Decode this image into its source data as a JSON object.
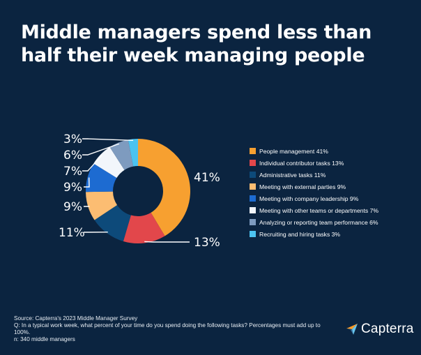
{
  "title": "Middle managers spend less than half their week managing people",
  "chart_data": {
    "type": "pie",
    "title": "Middle managers spend less than half their week managing people",
    "categories": [
      "People management 41%",
      "Individual contributor tasks 13%",
      "Administrative tasks 11%",
      "Meeting with external parties 9%",
      "Meeting with company leadership 9%",
      "Meeting with other teams or departments 7%",
      "Analyzing or reporting team performance 6%",
      "Recruiting and hiring tasks 3%"
    ],
    "values": [
      41,
      13,
      11,
      9,
      9,
      7,
      6,
      3
    ],
    "value_labels": [
      "41%",
      "13%",
      "11%",
      "9%",
      "9%",
      "7%",
      "6%",
      "3%"
    ],
    "colors": [
      "#f7a030",
      "#e2474b",
      "#0d4a7a",
      "#fcbd72",
      "#1d6bd1",
      "#f2f6fb",
      "#7e9bbf",
      "#4cc3f0"
    ],
    "legend_position": "right"
  },
  "footer": {
    "source": "Source: Capterra's 2023 Middle Manager Survey",
    "question": "Q: In a typical work week, what percent of your time do you spend doing the following tasks? Percentages must add up to 100%.",
    "sample": "n: 340 middle managers"
  },
  "logo": {
    "text": "Capterra",
    "icon": "capterra-arrow-icon"
  }
}
